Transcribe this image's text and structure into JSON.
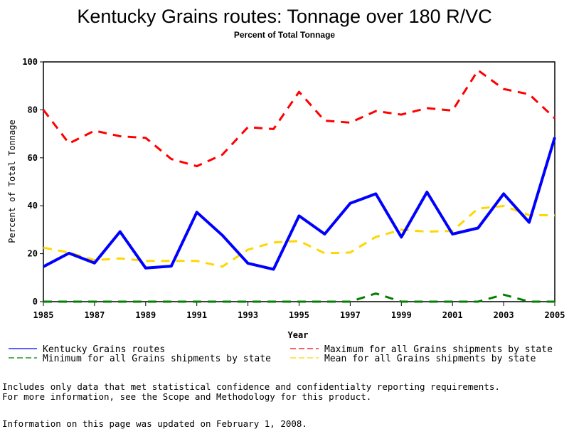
{
  "chart_data": {
    "type": "line",
    "title": "Kentucky Grains routes: Tonnage over 180 R/VC",
    "subtitle": "Percent of Total Tonnage",
    "xlabel": "Year",
    "ylabel": "Percent of Total Tonnage",
    "xlim": [
      1985,
      2005
    ],
    "ylim": [
      0,
      100
    ],
    "grid": false,
    "legend_position": "bottom",
    "x": [
      1985,
      1986,
      1987,
      1988,
      1989,
      1990,
      1991,
      1992,
      1993,
      1994,
      1995,
      1996,
      1997,
      1998,
      1999,
      2000,
      2001,
      2002,
      2003,
      2004,
      2005
    ],
    "x_ticks": [
      "1985",
      "1987",
      "1989",
      "1991",
      "1993",
      "1995",
      "1997",
      "1999",
      "2001",
      "2003",
      "2005"
    ],
    "y_ticks": [
      "0",
      "20",
      "40",
      "60",
      "80",
      "100"
    ],
    "series": [
      {
        "name": "Kentucky Grains routes",
        "color": "#0000ff",
        "style": "solid",
        "values": [
          14.6,
          20.2,
          16.1,
          29.2,
          14.0,
          14.8,
          37.3,
          27.7,
          16.0,
          13.5,
          35.8,
          28.2,
          41.0,
          45.0,
          26.9,
          45.7,
          28.2,
          30.7,
          45.0,
          33.1,
          68.5
        ]
      },
      {
        "name": "Maximum for all Grains shipments by state",
        "color": "#ff0000",
        "style": "dashed",
        "values": [
          80.0,
          66.0,
          71.3,
          69.0,
          68.3,
          59.5,
          56.5,
          61.3,
          72.8,
          72.0,
          87.5,
          75.5,
          74.7,
          79.5,
          78.0,
          80.7,
          79.7,
          96.5,
          88.7,
          86.5,
          76.5
        ]
      },
      {
        "name": "Minimum for all Grains shipments by state",
        "color": "#008000",
        "style": "dashed",
        "values": [
          0,
          0,
          0,
          0,
          0,
          0,
          0,
          0,
          0,
          0,
          0,
          0,
          0,
          3.4,
          0,
          0,
          0,
          0,
          2.9,
          0,
          0
        ]
      },
      {
        "name": "Mean for all Grains shipments by state",
        "color": "#ffd700",
        "style": "dashed",
        "values": [
          22.5,
          20.5,
          17.3,
          18.0,
          17.0,
          17.0,
          17.0,
          14.6,
          21.7,
          24.7,
          25.3,
          20.2,
          20.5,
          27.0,
          30.0,
          29.2,
          29.5,
          38.8,
          39.9,
          36.1,
          36.0
        ]
      }
    ],
    "legend": [
      {
        "label": "Kentucky Grains routes",
        "color": "#0000ff",
        "style": "solid"
      },
      {
        "label": "Maximum for all Grains shipments by state",
        "color": "#ff0000",
        "style": "dashed"
      },
      {
        "label": "Minimum for all Grains shipments by state",
        "color": "#008000",
        "style": "dashed"
      },
      {
        "label": "Mean for all Grains shipments by state",
        "color": "#ffd700",
        "style": "dashed"
      }
    ]
  },
  "footnotes": {
    "line1": "Includes only data that met statistical confidence and confidentialty reporting requirements.",
    "line2": "For more information, see the Scope and Methodology for this product.",
    "updated": "Information on this page was updated on February 1, 2008."
  }
}
